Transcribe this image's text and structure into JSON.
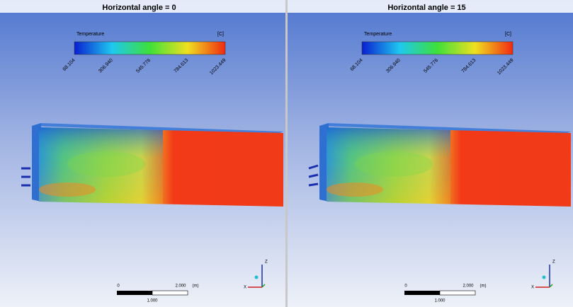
{
  "panels": [
    {
      "title": "Horizontal angle = 0",
      "legend": {
        "title": "Temperature",
        "unit": "[C]",
        "ticks": [
          "68.104",
          "306.940",
          "545.776",
          "784.613",
          "1023.449"
        ]
      },
      "scale": {
        "start": "0",
        "end": "2.000",
        "unit": "(m)",
        "mid": "1.000"
      },
      "axes": {
        "z": "Z",
        "x": "X"
      }
    },
    {
      "title": "Horizontal angle = 15",
      "legend": {
        "title": "Temperature",
        "unit": "[C]",
        "ticks": [
          "68.104",
          "306.940",
          "545.776",
          "784.613",
          "1023.449"
        ]
      },
      "scale": {
        "start": "0",
        "end": "2.000",
        "unit": "(m)",
        "mid": "1.000"
      },
      "axes": {
        "z": "Z",
        "x": "X"
      }
    }
  ]
}
